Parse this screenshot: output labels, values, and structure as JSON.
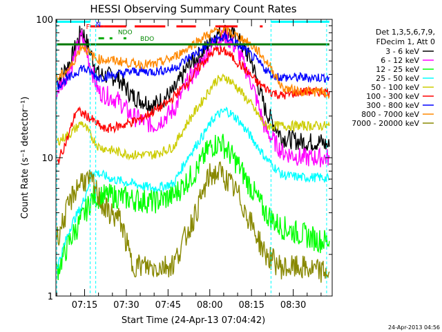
{
  "chart_data": {
    "type": "line",
    "title": "HESSI Observing Summary Count Rates",
    "xlabel": "Start Time (24-Apr-13 07:04:42)",
    "ylabel": "Count Rate (s⁻¹ detector⁻¹)",
    "x_start": "07:04:42",
    "x_end": "08:44:00",
    "yscale": "log",
    "ylim": [
      1,
      100
    ],
    "x_ticks": [
      "07:15",
      "07:30",
      "07:45",
      "08:00",
      "08:15",
      "08:30"
    ],
    "y_ticks": [
      "1",
      "10",
      "100"
    ],
    "legend_title": [
      "Det 1,3,5,6,7,9,",
      "FDecim 1, Att 0"
    ],
    "legend_position": "right",
    "series": [
      {
        "name": "3 - 6 keV",
        "color": "#000000",
        "points": [
          [
            "07:05",
            35
          ],
          [
            "07:10",
            50
          ],
          [
            "07:14",
            85
          ],
          [
            "07:20",
            40
          ],
          [
            "07:27",
            38
          ],
          [
            "07:32",
            28
          ],
          [
            "07:40",
            24
          ],
          [
            "07:47",
            30
          ],
          [
            "07:52",
            45
          ],
          [
            "07:58",
            60
          ],
          [
            "08:02",
            78
          ],
          [
            "08:06",
            82
          ],
          [
            "08:10",
            72
          ],
          [
            "08:15",
            50
          ],
          [
            "08:20",
            22
          ],
          [
            "08:26",
            14
          ],
          [
            "08:33",
            13
          ],
          [
            "08:40",
            13
          ],
          [
            "08:43",
            12
          ]
        ]
      },
      {
        "name": "6 - 12 keV",
        "color": "#ff00ff",
        "points": [
          [
            "07:05",
            30
          ],
          [
            "07:10",
            45
          ],
          [
            "07:14",
            75
          ],
          [
            "07:20",
            30
          ],
          [
            "07:27",
            26
          ],
          [
            "07:32",
            20
          ],
          [
            "07:40",
            17
          ],
          [
            "07:47",
            22
          ],
          [
            "07:52",
            35
          ],
          [
            "07:58",
            52
          ],
          [
            "08:02",
            70
          ],
          [
            "08:06",
            75
          ],
          [
            "08:10",
            60
          ],
          [
            "08:15",
            35
          ],
          [
            "08:20",
            16
          ],
          [
            "08:26",
            11
          ],
          [
            "08:33",
            10
          ],
          [
            "08:40",
            10
          ],
          [
            "08:43",
            10
          ]
        ]
      },
      {
        "name": "12 - 25 keV",
        "color": "#00ff00",
        "points": [
          [
            "07:05",
            1.5
          ],
          [
            "07:10",
            2.6
          ],
          [
            "07:14",
            3.6
          ],
          [
            "07:18",
            5.2
          ],
          [
            "07:25",
            5.3
          ],
          [
            "07:32",
            5.0
          ],
          [
            "07:40",
            4.8
          ],
          [
            "07:47",
            5.3
          ],
          [
            "07:55",
            8
          ],
          [
            "08:00",
            12
          ],
          [
            "08:04",
            13
          ],
          [
            "08:10",
            9
          ],
          [
            "08:15",
            6
          ],
          [
            "08:20",
            4
          ],
          [
            "08:25",
            3.2
          ],
          [
            "08:33",
            2.8
          ],
          [
            "08:40",
            2.5
          ],
          [
            "08:43",
            2.5
          ]
        ]
      },
      {
        "name": "25 - 50 keV",
        "color": "#00ffff",
        "points": [
          [
            "07:05",
            1.6
          ],
          [
            "07:10",
            3.2
          ],
          [
            "07:14",
            4.5
          ],
          [
            "07:18",
            8
          ],
          [
            "07:25",
            7
          ],
          [
            "07:32",
            6.5
          ],
          [
            "07:40",
            6.0
          ],
          [
            "07:47",
            6.5
          ],
          [
            "07:52",
            10
          ],
          [
            "07:58",
            15
          ],
          [
            "08:02",
            20
          ],
          [
            "08:06",
            22
          ],
          [
            "08:10",
            19
          ],
          [
            "08:15",
            14
          ],
          [
            "08:20",
            10
          ],
          [
            "08:26",
            7.5
          ],
          [
            "08:33",
            7.2
          ],
          [
            "08:40",
            7.2
          ],
          [
            "08:43",
            7
          ]
        ]
      },
      {
        "name": "50 - 100 keV",
        "color": "#cccc00",
        "points": [
          [
            "07:05",
            13
          ],
          [
            "07:10",
            15
          ],
          [
            "07:14",
            18
          ],
          [
            "07:20",
            12
          ],
          [
            "07:27",
            11
          ],
          [
            "07:32",
            10.5
          ],
          [
            "07:40",
            10.5
          ],
          [
            "07:47",
            12
          ],
          [
            "07:52",
            18
          ],
          [
            "07:58",
            27
          ],
          [
            "08:02",
            36
          ],
          [
            "08:06",
            38
          ],
          [
            "08:10",
            32
          ],
          [
            "08:15",
            24
          ],
          [
            "08:20",
            17
          ],
          [
            "08:26",
            17
          ],
          [
            "08:33",
            17
          ],
          [
            "08:40",
            17
          ],
          [
            "08:43",
            17
          ]
        ]
      },
      {
        "name": "100 - 300 keV",
        "color": "#ff0000",
        "points": [
          [
            "07:05",
            9
          ],
          [
            "07:09",
            14
          ],
          [
            "07:12",
            22
          ],
          [
            "07:16",
            20
          ],
          [
            "07:22",
            16
          ],
          [
            "07:28",
            17
          ],
          [
            "07:35",
            19
          ],
          [
            "07:45",
            25
          ],
          [
            "07:52",
            35
          ],
          [
            "07:58",
            50
          ],
          [
            "08:02",
            60
          ],
          [
            "08:06",
            58
          ],
          [
            "08:12",
            45
          ],
          [
            "08:17",
            35
          ],
          [
            "08:22",
            30
          ],
          [
            "08:26",
            28
          ],
          [
            "08:33",
            30
          ],
          [
            "08:40",
            30
          ],
          [
            "08:43",
            30
          ]
        ]
      },
      {
        "name": "300 - 800 keV",
        "color": "#0000ff",
        "points": [
          [
            "07:05",
            33
          ],
          [
            "07:10",
            38
          ],
          [
            "07:14",
            45
          ],
          [
            "07:20",
            38
          ],
          [
            "07:27",
            40
          ],
          [
            "07:32",
            42
          ],
          [
            "07:40",
            42
          ],
          [
            "07:47",
            44
          ],
          [
            "07:52",
            52
          ],
          [
            "07:58",
            62
          ],
          [
            "08:02",
            72
          ],
          [
            "08:06",
            74
          ],
          [
            "08:12",
            62
          ],
          [
            "08:17",
            50
          ],
          [
            "08:22",
            40
          ],
          [
            "08:26",
            38
          ],
          [
            "08:33",
            38
          ],
          [
            "08:40",
            38
          ],
          [
            "08:43",
            38
          ]
        ]
      },
      {
        "name": "800 - 7000 keV",
        "color": "#ff8800",
        "points": [
          [
            "07:05",
            37
          ],
          [
            "07:10",
            45
          ],
          [
            "07:14",
            65
          ],
          [
            "07:19",
            52
          ],
          [
            "07:27",
            50
          ],
          [
            "07:32",
            48
          ],
          [
            "07:40",
            47
          ],
          [
            "07:47",
            53
          ],
          [
            "07:52",
            62
          ],
          [
            "07:58",
            75
          ],
          [
            "08:02",
            82
          ],
          [
            "08:06",
            83
          ],
          [
            "08:12",
            72
          ],
          [
            "08:17",
            60
          ],
          [
            "08:22",
            45
          ],
          [
            "08:26",
            32
          ],
          [
            "08:33",
            30
          ],
          [
            "08:40",
            30
          ],
          [
            "08:43",
            28
          ]
        ]
      },
      {
        "name": "7000 - 20000 keV",
        "color": "#888800",
        "points": [
          [
            "07:05",
            2.6
          ],
          [
            "07:08",
            3.8
          ],
          [
            "07:11",
            5.5
          ],
          [
            "07:14",
            7.0
          ],
          [
            "07:18",
            6.5
          ],
          [
            "07:22",
            4.3
          ],
          [
            "07:28",
            3.5
          ],
          [
            "07:32",
            1.7
          ],
          [
            "07:40",
            1.6
          ],
          [
            "07:47",
            1.7
          ],
          [
            "07:55",
            4.0
          ],
          [
            "08:00",
            7.5
          ],
          [
            "08:04",
            7.8
          ],
          [
            "08:10",
            5.5
          ],
          [
            "08:15",
            3.3
          ],
          [
            "08:20",
            2.0
          ],
          [
            "08:26",
            1.6
          ],
          [
            "08:33",
            1.6
          ],
          [
            "08:40",
            1.5
          ],
          [
            "08:43",
            1.5
          ]
        ]
      }
    ],
    "flag_bars": [
      {
        "label": "",
        "color": "#00ffff",
        "y": 96,
        "segments": [
          [
            "07:05",
            "07:17"
          ],
          [
            "08:22",
            "08:43"
          ]
        ]
      },
      {
        "label": "F",
        "color": "#ff0000",
        "y": 89,
        "segments": [
          [
            "07:17",
            "07:22"
          ],
          [
            "07:22",
            "07:30"
          ],
          [
            "07:33",
            "07:44"
          ],
          [
            "07:48",
            "07:55"
          ],
          [
            "08:02",
            "08:10"
          ],
          [
            "08:18",
            "08:19"
          ]
        ]
      },
      {
        "label": "N",
        "color": "#0000ff",
        "y": 93,
        "segments": []
      },
      {
        "label": "",
        "color": "#00aa00",
        "y": 73,
        "segments": [
          [
            "07:20",
            "07:22"
          ],
          [
            "07:24",
            "07:25"
          ],
          [
            "07:29",
            "07:30"
          ]
        ]
      },
      {
        "label": "",
        "color": "#007700",
        "y": 66,
        "segments": [
          [
            "07:05",
            "08:43"
          ]
        ]
      }
    ],
    "region_labels": [
      {
        "label": "NDO",
        "x": "07:27",
        "color": "#008800"
      },
      {
        "label": "BDO",
        "x": "07:35",
        "color": "#008800"
      }
    ],
    "footer_timestamp": "24-Apr-2013 04:56"
  }
}
